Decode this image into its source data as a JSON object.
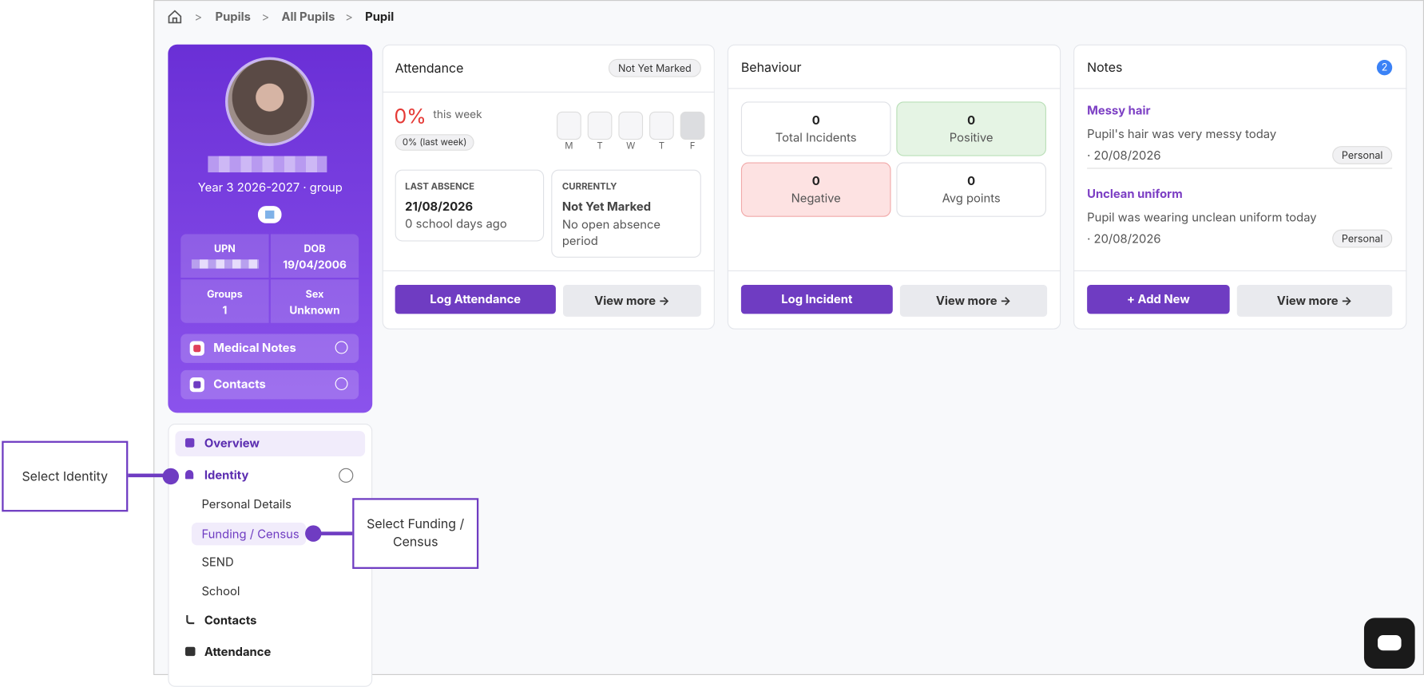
{
  "breadcrumb": [
    "Pupils",
    "All Pupils",
    "Pupil"
  ],
  "profile": {
    "group": "Year 3 2026-2027 · group",
    "fields": [
      {
        "label": "UPN",
        "value": ""
      },
      {
        "label": "DOB",
        "value": "19/04/2006"
      },
      {
        "label": "Groups",
        "value": "1"
      },
      {
        "label": "Sex",
        "value": "Unknown"
      }
    ],
    "sections": [
      "Medical Notes",
      "Contacts"
    ]
  },
  "nav": {
    "items": [
      "Overview",
      "Identity",
      "Contacts",
      "Attendance"
    ],
    "sub_items": [
      "Personal Details",
      "Funding / Census",
      "SEND",
      "School"
    ]
  },
  "callouts": [
    "Select Identity",
    "Select Funding / Census"
  ],
  "attendance": {
    "title": "Attendance",
    "badge": "Not Yet Marked",
    "percent": "0%",
    "period": "this week",
    "last_week": "0% (last week)",
    "days": [
      "M",
      "T",
      "W",
      "T",
      "F"
    ],
    "last_absence": {
      "label": "LAST ABSENCE",
      "date": "21/08/2026",
      "detail": "0 school days ago"
    },
    "currently": {
      "label": "CURRENTLY",
      "status": "Not Yet Marked",
      "detail": "No open absence period"
    },
    "buttons": [
      "Log Attendance",
      "View more"
    ]
  },
  "behaviour": {
    "title": "Behaviour",
    "stats": [
      {
        "value": 0,
        "label": "Total Incidents"
      },
      {
        "value": 0,
        "label": "Positive"
      },
      {
        "value": 0,
        "label": "Negative"
      },
      {
        "value": 0,
        "label": "Avg points"
      }
    ],
    "buttons": [
      "Log Incident",
      "View more"
    ]
  },
  "notes": {
    "title": "Notes",
    "count": 2,
    "items": [
      {
        "title": "Messy hair",
        "text": "Pupil's hair was very messy today",
        "date": "· 20/08/2026",
        "tag": "Personal"
      },
      {
        "title": "Unclean uniform",
        "text": "Pupil was wearing unclean uniform today",
        "date": "· 20/08/2026",
        "tag": "Personal"
      }
    ],
    "buttons": [
      "Add New",
      "View more"
    ]
  }
}
